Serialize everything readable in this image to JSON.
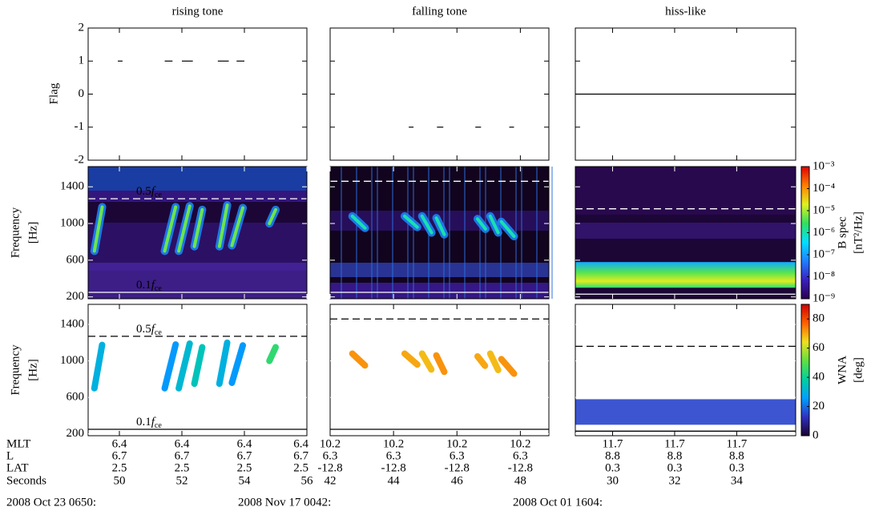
{
  "chart_data": [
    {
      "type": "spectrogram",
      "title": "rising tone",
      "date": "2008 Oct 23 0650:",
      "xlim": [
        49,
        56
      ],
      "xticks": [
        50,
        52,
        54,
        56
      ],
      "mlt": [
        6.4,
        6.4,
        6.4,
        6.4
      ],
      "l": [
        6.7,
        6.7,
        6.7,
        6.7
      ],
      "lat": [
        2.5,
        2.5,
        2.5,
        2.5
      ],
      "flag_segments": [
        [
          49.95,
          50.1
        ],
        [
          51.45,
          51.7
        ],
        [
          52.0,
          52.35
        ],
        [
          53.15,
          53.5
        ],
        [
          53.75,
          54.0
        ]
      ],
      "flag_values": [
        1,
        1,
        1,
        1,
        1
      ],
      "elements": [
        [
          [
            49.2,
            700
          ],
          [
            49.45,
            1180
          ]
        ],
        [
          [
            51.45,
            700
          ],
          [
            51.8,
            1180
          ]
        ],
        [
          [
            51.9,
            700
          ],
          [
            52.25,
            1190
          ]
        ],
        [
          [
            52.4,
            750
          ],
          [
            52.65,
            1150
          ]
        ],
        [
          [
            53.2,
            750
          ],
          [
            53.45,
            1200
          ]
        ],
        [
          [
            53.6,
            760
          ],
          [
            53.95,
            1170
          ]
        ],
        [
          [
            54.8,
            1000
          ],
          [
            55.0,
            1150
          ]
        ]
      ],
      "wna": [
        30,
        25,
        32,
        35,
        30,
        25,
        45
      ],
      "fce": [
        1270,
        250
      ],
      "fce_labels": [
        "0.5",
        "0.1"
      ]
    },
    {
      "type": "spectrogram",
      "title": "falling tone",
      "date": "2008 Nov 17 0042:",
      "xlim": [
        42,
        48.9
      ],
      "xticks": [
        42,
        44,
        46,
        48
      ],
      "mlt": [
        10.2,
        10.2,
        10.2,
        10.2
      ],
      "l": [
        6.3,
        6.3,
        6.3,
        6.3
      ],
      "lat": [
        -12.8,
        -12.8,
        -12.8,
        -12.8
      ],
      "flag_segments": [
        [
          44.48,
          44.63
        ],
        [
          45.37,
          45.57
        ],
        [
          46.58,
          46.76
        ],
        [
          47.65,
          47.8
        ]
      ],
      "flag_values": [
        -1,
        -1,
        -1,
        -1
      ],
      "elements": [
        [
          [
            42.7,
            1080
          ],
          [
            43.1,
            950
          ]
        ],
        [
          [
            44.35,
            1080
          ],
          [
            44.75,
            960
          ]
        ],
        [
          [
            44.9,
            1080
          ],
          [
            45.2,
            900
          ]
        ],
        [
          [
            45.35,
            1060
          ],
          [
            45.6,
            880
          ]
        ],
        [
          [
            46.65,
            1050
          ],
          [
            46.9,
            940
          ]
        ],
        [
          [
            47.05,
            1080
          ],
          [
            47.3,
            900
          ]
        ],
        [
          [
            47.4,
            1020
          ],
          [
            47.8,
            860
          ]
        ]
      ],
      "wna": [
        72,
        70,
        68,
        72,
        70,
        68,
        72
      ],
      "fce": [
        1460,
        250
      ]
    },
    {
      "type": "spectrogram",
      "title": "hiss-like",
      "date": "2008 Oct 01 1604:",
      "xlim": [
        28.8,
        35.9
      ],
      "xticks": [
        30,
        32,
        34
      ],
      "mlt": [
        11.7,
        11.7,
        11.7
      ],
      "l": [
        8.8,
        8.8,
        8.8
      ],
      "lat": [
        0.3,
        0.3,
        0.3
      ],
      "flag_segments": [
        [
          28.8,
          35.9
        ]
      ],
      "flag_values": [
        0
      ],
      "hiss_band": [
        300,
        580
      ],
      "hiss_wna": 15,
      "fce": [
        1160,
        230
      ]
    }
  ],
  "ephemeris_labels": [
    "MLT",
    "L",
    "LAT",
    "Seconds"
  ],
  "flag_axis": {
    "label": "Flag",
    "ylim": [
      -2,
      2
    ],
    "yticks": [
      -2,
      -1,
      0,
      1,
      2
    ]
  },
  "freq_axis": {
    "label": [
      "Frequency",
      "[Hz]"
    ],
    "ylim": [
      180,
      1620
    ],
    "yticks": [
      200,
      600,
      1000,
      1400
    ]
  },
  "fce_symbol": {
    "symbol": "f",
    "subscript": "ce"
  },
  "bspec_colorbar": {
    "label": [
      "B spec",
      "[nT²/Hz]"
    ],
    "log": true,
    "clim": [
      1e-09,
      0.001
    ],
    "ticks": [
      {
        "value": 1e-09,
        "label": "10⁻⁹"
      },
      {
        "value": 1e-08,
        "label": "10⁻⁸"
      },
      {
        "value": 1e-07,
        "label": "10⁻⁷"
      },
      {
        "value": 1e-06,
        "label": "10⁻⁶"
      },
      {
        "value": 1e-05,
        "label": "10⁻⁵"
      },
      {
        "value": 0.0001,
        "label": "10⁻⁴"
      },
      {
        "value": 0.001,
        "label": "10⁻³"
      }
    ],
    "colors": [
      "#2a0050",
      "#3a20c0",
      "#1f80ff",
      "#00e0ff",
      "#30e060",
      "#e0f020",
      "#ff8000",
      "#e00000"
    ]
  },
  "wna_colorbar": {
    "label": [
      "WNA",
      "[deg]"
    ],
    "clim": [
      0,
      90
    ],
    "ticks": [
      0,
      20,
      40,
      60,
      80
    ],
    "colors": [
      "#1a0030",
      "#3030c0",
      "#00a0ff",
      "#00d0a0",
      "#60e040",
      "#f0e020",
      "#ff6000",
      "#d00000"
    ]
  }
}
